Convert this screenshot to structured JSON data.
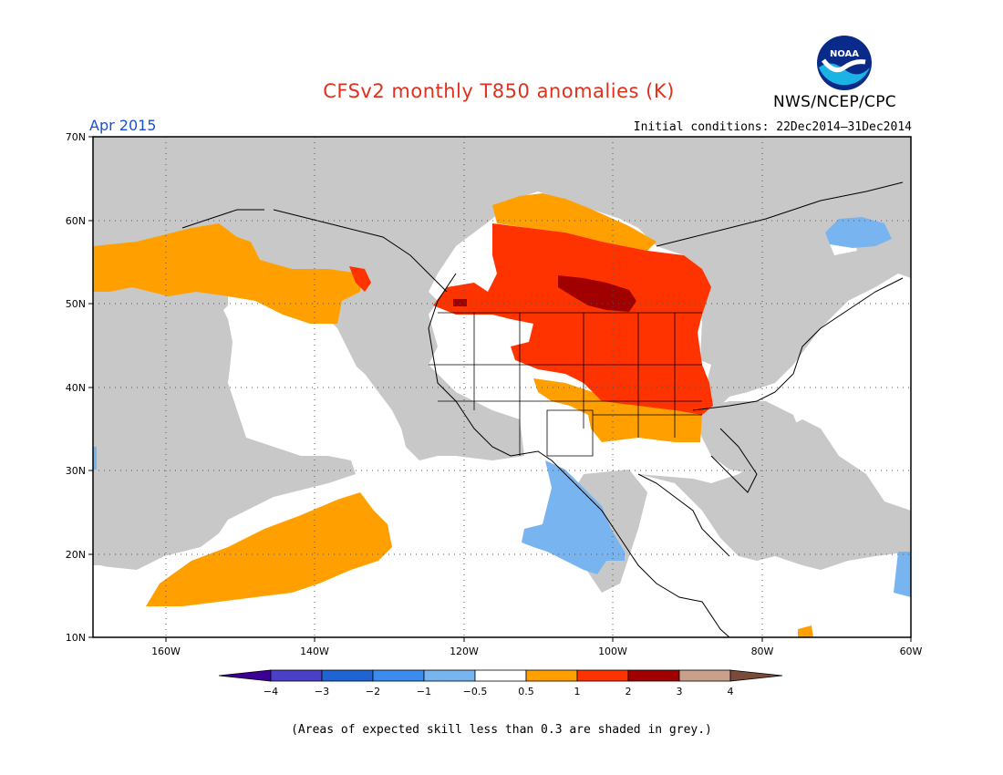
{
  "header": {
    "title": "CFSv2 monthly T850 anomalies (K)",
    "valid_month": "Apr 2015",
    "agency": "NWS/NCEP/CPC",
    "logo_text": "NOAA",
    "initial_conditions": "Initial conditions: 22Dec2014–31Dec2014"
  },
  "map": {
    "lat_labels": [
      "70N",
      "60N",
      "50N",
      "40N",
      "30N",
      "20N",
      "10N"
    ],
    "lon_labels": [
      "160W",
      "140W",
      "120W",
      "100W",
      "80W",
      "60W"
    ],
    "extent": {
      "lon_min": -170,
      "lon_max": -60,
      "lat_min": 10,
      "lat_max": 70
    },
    "colors": {
      "land": "#c8c8c8",
      "skill_grey": "#c8c8c8",
      "neutral": "#ffffff",
      "warm_05_1": "#ffa000",
      "warm_1_2": "#ff3300",
      "warm_2_3": "#a00000",
      "cool_m1_m05": "#78b4f0",
      "coast": "#000000"
    }
  },
  "colorbar": {
    "tick_labels": [
      "−4",
      "−3",
      "−2",
      "−1",
      "−0.5",
      "0.5",
      "1",
      "2",
      "3",
      "4"
    ],
    "colors": [
      "#3c0096",
      "#4a40c8",
      "#1e64d2",
      "#3c8cf0",
      "#78b4f0",
      "#ffffff",
      "#ffa000",
      "#ff3300",
      "#a00000",
      "#c8a08c",
      "#7a4a3a"
    ]
  },
  "footnote": "(Areas of expected skill less than 0.3 are shaded in grey.)"
}
